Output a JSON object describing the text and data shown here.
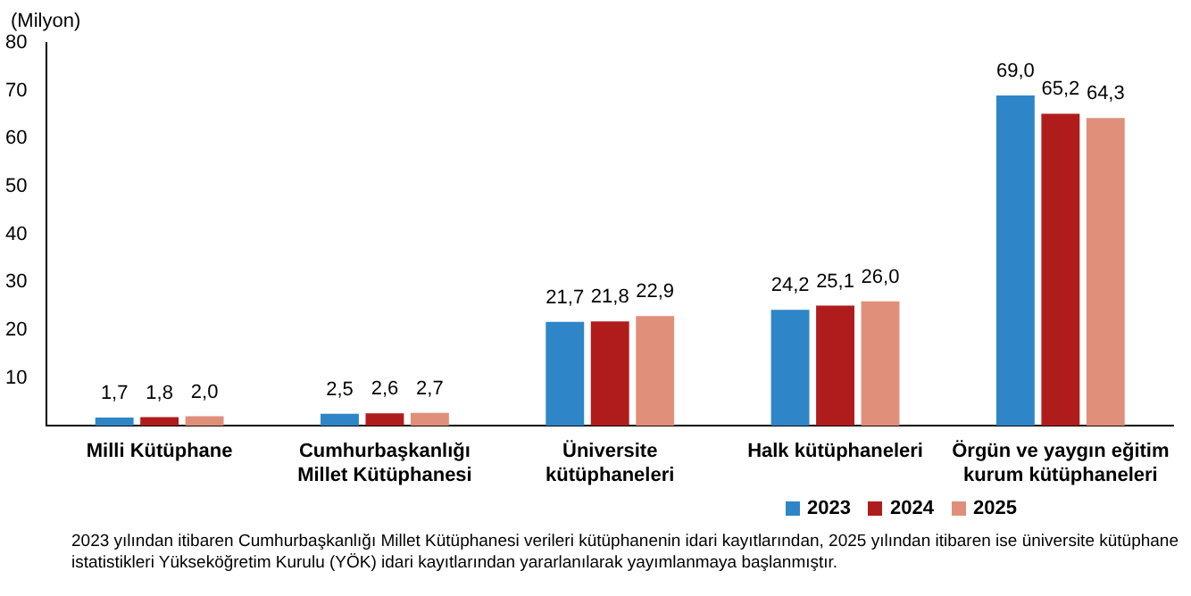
{
  "chart_data": {
    "type": "bar",
    "ylabel": "(Milyon)",
    "categories": [
      "Milli Kütüphane",
      "Cumhurbaşkanlığı Millet Kütüphanesi",
      "Üniversite kütüphaneleri",
      "Halk kütüphaneleri",
      "Örgün ve yaygın eğitim kurum kütüphaneleri"
    ],
    "series": [
      {
        "name": "2023",
        "color": "#2e86c8",
        "values": [
          1.7,
          2.5,
          21.7,
          24.2,
          69.0
        ],
        "value_labels": [
          "1,7",
          "2,5",
          "21,7",
          "24,2",
          "69,0"
        ]
      },
      {
        "name": "2024",
        "color": "#b01c1c",
        "values": [
          1.8,
          2.6,
          21.8,
          25.1,
          65.2
        ],
        "value_labels": [
          "1,8",
          "2,6",
          "21,8",
          "25,1",
          "65,2"
        ]
      },
      {
        "name": "2025",
        "color": "#e0907a",
        "values": [
          2.0,
          2.7,
          22.9,
          26.0,
          64.3
        ],
        "value_labels": [
          "2,0",
          "2,7",
          "22,9",
          "26,0",
          "64,3"
        ]
      }
    ],
    "ylim": [
      0,
      80
    ],
    "yticks": [
      {
        "value": 0,
        "label": null
      },
      10,
      20,
      30,
      40,
      50,
      60,
      70,
      80
    ],
    "grid": false,
    "legend": "bottom right",
    "annotations": [
      "2023 yılından itibaren Cumhurbaşkanlığı Millet Kütüphanesi verileri kütüphanenin idari kayıtlarından, 2025 yılından itibaren ise üniversite kütüphane istatistikleri Yükseköğretim Kurulu (YÖK) idari kayıtlarından yararlanılarak yayımlanmaya başlanmıştır."
    ]
  }
}
